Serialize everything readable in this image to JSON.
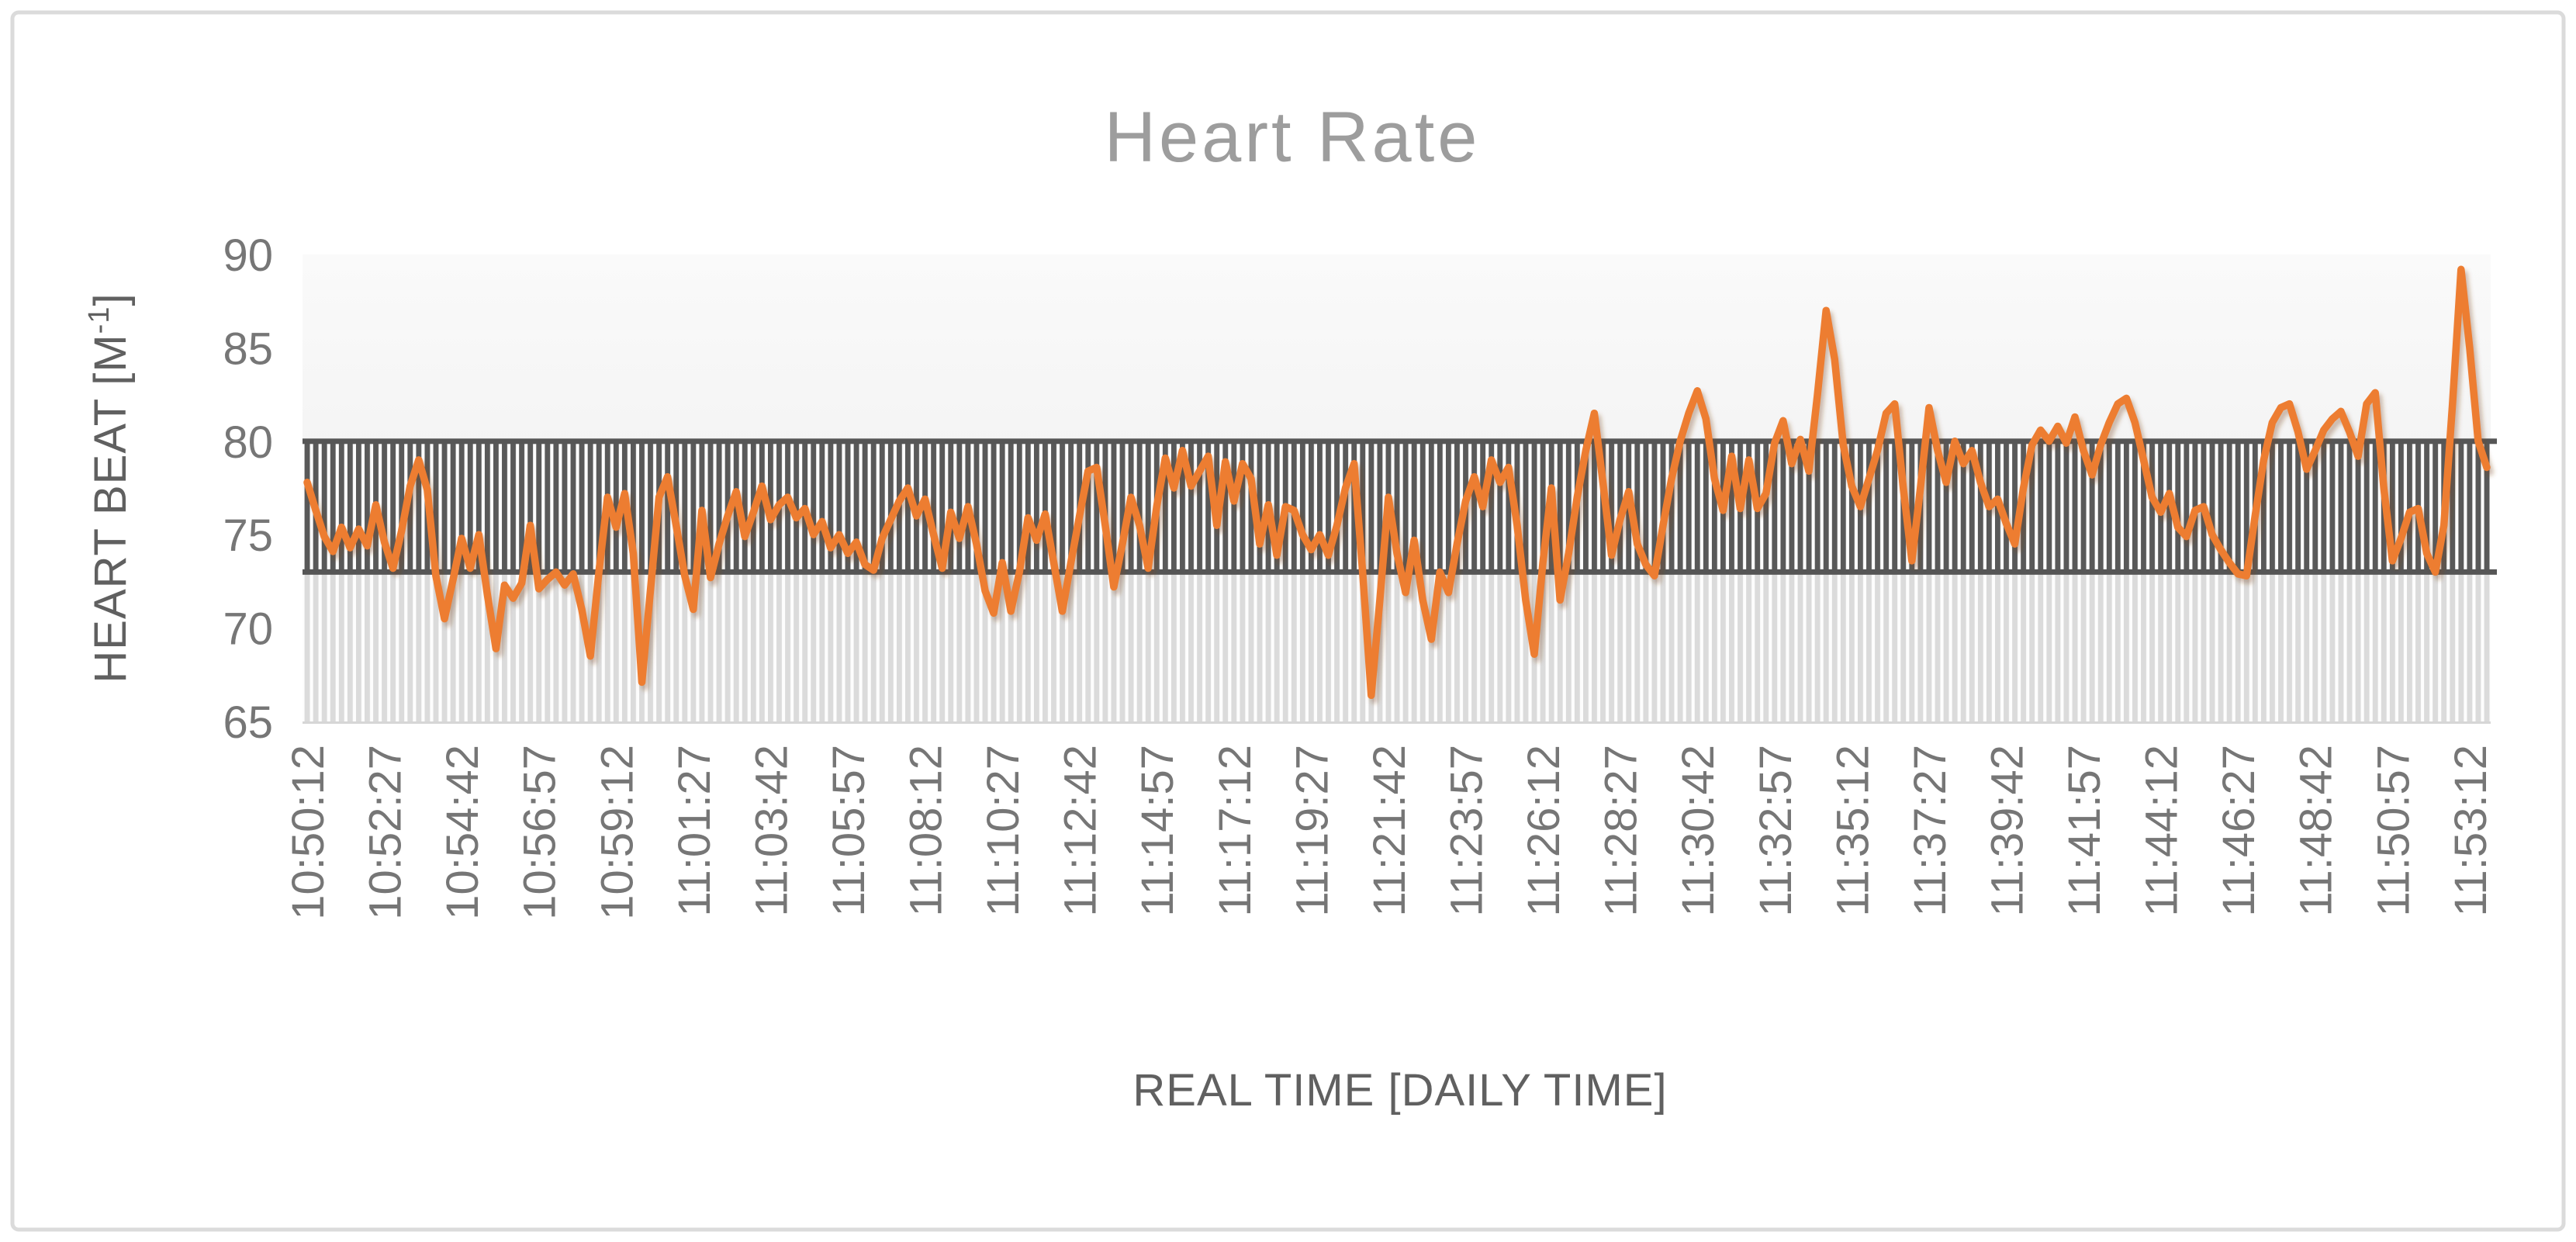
{
  "chart_data": {
    "type": "line",
    "title": "Heart Rate",
    "xlabel": "REAL TIME [DAILY TIME]",
    "ylabel": "HEART BEAT [M⁻¹]",
    "ylabel_parts": {
      "main": "HEART BEAT [M",
      "sup": "-1",
      "close": "]"
    },
    "ylim": [
      65,
      90
    ],
    "yticks": [
      90,
      85,
      80,
      75,
      70,
      65
    ],
    "grid": false,
    "legend": "none",
    "points_per_label": 9,
    "x_tick_labels": [
      "10:50:12",
      "10:52:27",
      "10:54:42",
      "10:56:57",
      "10:59:12",
      "11:01:27",
      "11:03:42",
      "11:05:57",
      "11:08:12",
      "11:10:27",
      "11:12:42",
      "11:14:57",
      "11:17:12",
      "11:19:27",
      "11:21:42",
      "11:23:57",
      "11:26:12",
      "11:28:27",
      "11:30:42",
      "11:32:57",
      "11:35:12",
      "11:37:27",
      "11:39:42",
      "11:41:57",
      "11:44:12",
      "11:46:27",
      "11:48:42",
      "11:50:57",
      "11:53:12"
    ],
    "bands": [
      {
        "name": "upper-zone",
        "from": 73,
        "to": 80,
        "style": "dark-stripes",
        "edged": true
      },
      {
        "name": "lower-zone",
        "from": 65,
        "to": 73,
        "style": "light-stripes",
        "edged": false
      }
    ],
    "series": [
      {
        "name": "Heart Rate",
        "color": "#ED7D31",
        "values": [
          77.8,
          76.3,
          74.9,
          74.1,
          75.4,
          74.3,
          75.3,
          74.4,
          76.6,
          74.6,
          73.2,
          75.2,
          77.6,
          79.0,
          77.4,
          72.8,
          70.5,
          72.6,
          74.8,
          73.2,
          75.0,
          71.8,
          68.9,
          72.3,
          71.6,
          72.4,
          75.5,
          72.1,
          72.6,
          73.0,
          72.3,
          72.9,
          71.0,
          68.5,
          73.0,
          77.0,
          75.4,
          77.2,
          74.0,
          67.1,
          72.0,
          77.0,
          78.1,
          75.5,
          72.8,
          71.0,
          76.3,
          72.7,
          74.5,
          76.0,
          77.3,
          74.9,
          76.2,
          77.6,
          75.8,
          76.6,
          77.0,
          75.9,
          76.4,
          75.0,
          75.7,
          74.3,
          75.0,
          74.0,
          74.6,
          73.4,
          73.1,
          74.8,
          75.8,
          76.8,
          77.5,
          76.0,
          76.9,
          75.0,
          73.2,
          76.2,
          74.8,
          76.5,
          74.5,
          72.0,
          70.8,
          73.5,
          70.9,
          73.0,
          75.9,
          74.7,
          76.1,
          73.5,
          70.9,
          73.5,
          76.0,
          78.4,
          78.6,
          75.5,
          72.2,
          74.5,
          77.0,
          75.5,
          73.2,
          76.5,
          79.1,
          77.5,
          79.5,
          77.6,
          78.4,
          79.2,
          75.5,
          78.9,
          76.8,
          78.8,
          78.0,
          74.5,
          76.6,
          73.9,
          76.5,
          76.3,
          75.0,
          74.2,
          75.0,
          73.9,
          75.5,
          77.5,
          78.8,
          73.0,
          66.4,
          71.5,
          77.0,
          74.0,
          71.9,
          74.7,
          71.5,
          69.4,
          73.0,
          71.9,
          74.5,
          76.8,
          78.1,
          76.5,
          79.0,
          77.8,
          78.6,
          75.5,
          71.5,
          68.6,
          73.5,
          77.5,
          71.5,
          74.0,
          77.0,
          79.5,
          81.5,
          77.8,
          73.9,
          75.8,
          77.3,
          74.5,
          73.4,
          72.8,
          75.5,
          78.0,
          80.0,
          81.5,
          82.7,
          81.2,
          78.0,
          76.3,
          79.2,
          76.4,
          79.0,
          76.4,
          77.2,
          79.9,
          81.1,
          78.8,
          80.1,
          78.4,
          82.5,
          87.0,
          84.4,
          79.8,
          77.6,
          76.5,
          78.0,
          79.5,
          81.5,
          82.0,
          77.5,
          73.6,
          77.5,
          81.8,
          79.5,
          77.8,
          80.0,
          78.8,
          79.5,
          77.8,
          76.5,
          76.9,
          75.6,
          74.5,
          77.5,
          79.8,
          80.6,
          80.0,
          80.8,
          79.9,
          81.3,
          79.5,
          78.2,
          79.8,
          81.0,
          82.0,
          82.3,
          81.0,
          79.0,
          77.0,
          76.2,
          77.2,
          75.4,
          74.9,
          76.3,
          76.5,
          75.0,
          74.2,
          73.5,
          72.9,
          72.8,
          76.0,
          79.0,
          81.0,
          81.8,
          82.0,
          80.5,
          78.5,
          79.5,
          80.6,
          81.2,
          81.6,
          80.5,
          79.2,
          82.0,
          82.6,
          77.5,
          73.6,
          74.8,
          76.2,
          76.4,
          74.0,
          73.0,
          75.5,
          82.0,
          89.2,
          85.0,
          80.0,
          78.6
        ]
      }
    ],
    "colors": {
      "line": "#ED7D31",
      "line_shadow": "rgba(120,70,25,0.35)",
      "band_dark_stripe": "#595959",
      "band_light_stripe": "#DBDBDB",
      "band_gap": "#FDFDFD",
      "band_edge": "#565656",
      "plot_bg_top": "#FAFAFA",
      "plot_bg_bottom": "#ECECEC",
      "title_color": "#9D9D9D",
      "tick_color": "#767676",
      "axis_title_color": "#606060",
      "frame_border": "#DBDBDB",
      "axis_line": "#D6D6D6"
    }
  }
}
